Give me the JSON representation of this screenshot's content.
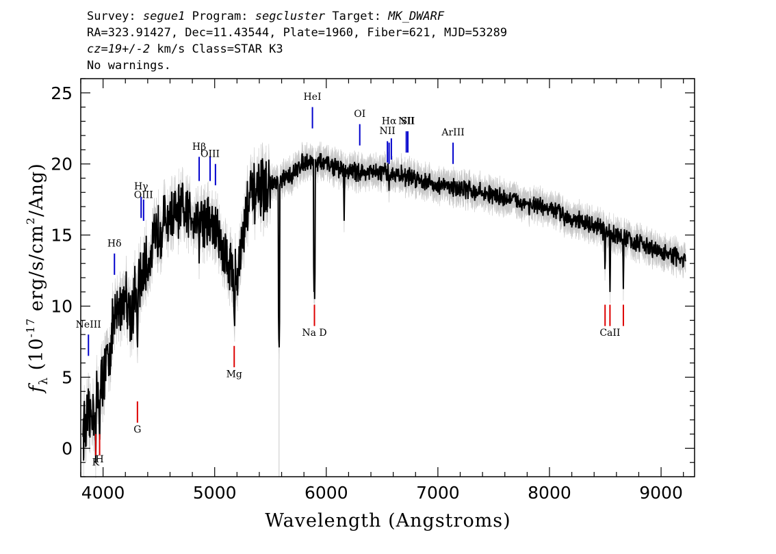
{
  "header": {
    "survey_label": "Survey:",
    "survey": "segue1",
    "program_label": "Program:",
    "program": "segcluster",
    "target_label": "Target:",
    "target": "MK_DWARF",
    "coords_line": "RA=323.91427, Dec=11.43544, Plate=1960, Fiber=621, MJD=53289",
    "cz_value": "cz=19+/-2",
    "cz_rest": " km/s Class=STAR K3",
    "warnings": "No warnings."
  },
  "chart_data": {
    "type": "line",
    "xlabel": "Wavelength (Angstroms)",
    "ylabel_parts": {
      "f": "f",
      "lambda": "λ",
      "open": " (10",
      "exp1": "-17",
      "mid": " erg/s/cm",
      "exp2": "2",
      "close": "/Ang)"
    },
    "xlim": [
      3800,
      9300
    ],
    "ylim": [
      -2,
      26
    ],
    "x_ticks": [
      4000,
      5000,
      6000,
      7000,
      8000,
      9000
    ],
    "x_tick_labels": [
      "4000",
      "5000",
      "6000",
      "7000",
      "8000",
      "9000"
    ],
    "y_ticks": [
      0,
      5,
      10,
      15,
      20,
      25
    ],
    "y_tick_labels": [
      "0",
      "5",
      "10",
      "15",
      "20",
      "25"
    ],
    "x_minor_step": 200,
    "y_minor_step": 1,
    "colors": {
      "spectrum": "#000000",
      "error": "#c8c8c8",
      "emission": "#0000cc",
      "absorption": "#dd0000"
    },
    "continuum": [
      [
        3820,
        1.5
      ],
      [
        3850,
        1.5
      ],
      [
        3900,
        2.5
      ],
      [
        3950,
        3.5
      ],
      [
        4000,
        5.0
      ],
      [
        4050,
        6.5
      ],
      [
        4100,
        9.0
      ],
      [
        4150,
        10.0
      ],
      [
        4200,
        11.0
      ],
      [
        4250,
        9.5
      ],
      [
        4300,
        11.0
      ],
      [
        4350,
        12.0
      ],
      [
        4400,
        13.0
      ],
      [
        4500,
        15.5
      ],
      [
        4600,
        16.3
      ],
      [
        4700,
        16.5
      ],
      [
        4800,
        16.5
      ],
      [
        4900,
        16.2
      ],
      [
        5000,
        15.5
      ],
      [
        5100,
        13.5
      ],
      [
        5200,
        12.0
      ],
      [
        5300,
        17.5
      ],
      [
        5400,
        18.0
      ],
      [
        5500,
        18.5
      ],
      [
        5600,
        18.8
      ],
      [
        5700,
        19.3
      ],
      [
        5800,
        20.2
      ],
      [
        5900,
        20.2
      ],
      [
        6000,
        20.0
      ],
      [
        6200,
        19.5
      ],
      [
        6400,
        19.4
      ],
      [
        6600,
        19.3
      ],
      [
        6800,
        19.0
      ],
      [
        7000,
        18.5
      ],
      [
        7200,
        18.3
      ],
      [
        7500,
        17.8
      ],
      [
        7800,
        17.2
      ],
      [
        8000,
        16.8
      ],
      [
        8200,
        16.2
      ],
      [
        8400,
        15.6
      ],
      [
        8600,
        15.0
      ],
      [
        8800,
        14.4
      ],
      [
        9000,
        13.8
      ],
      [
        9220,
        13.2
      ]
    ],
    "absorption_dips": [
      [
        3934,
        -1.0
      ],
      [
        3969,
        0.0
      ],
      [
        4102,
        8.0
      ],
      [
        4308,
        6.5
      ],
      [
        4861,
        13.0
      ],
      [
        5175,
        8.5
      ],
      [
        5178,
        8.0
      ],
      [
        5577,
        6.5
      ],
      [
        5890,
        11.0
      ],
      [
        5896,
        10.5
      ],
      [
        6160,
        16.0
      ],
      [
        6563,
        17.5
      ],
      [
        8498,
        12.0
      ],
      [
        8542,
        11.0
      ],
      [
        8662,
        11.2
      ]
    ],
    "emission_lines": [
      {
        "label": "NeIII",
        "wavelength": 3869,
        "y0": 6.5,
        "y1": 8.0,
        "label_y": 8.5
      },
      {
        "label": "Hδ",
        "wavelength": 4102,
        "y0": 12.2,
        "y1": 13.7,
        "label_y": 14.2
      },
      {
        "label": "Hγ",
        "wavelength": 4341,
        "y0": 16.2,
        "y1": 17.7,
        "label_y": 18.2
      },
      {
        "label": "OIII",
        "wavelength": 4363,
        "y0": 16.0,
        "y1": 17.5,
        "label_y": 17.6
      },
      {
        "label": "Hβ",
        "wavelength": 4861,
        "y0": 18.8,
        "y1": 20.5,
        "label_y": 21.0
      },
      {
        "label": "OIII",
        "wavelength": 4959,
        "y0": 18.8,
        "y1": 20.5,
        "label_y": 20.5
      },
      {
        "label": "OIII",
        "wavelength": 5007,
        "y0": 18.5,
        "y1": 20.0
      },
      {
        "label": "HeI",
        "wavelength": 5876,
        "y0": 22.5,
        "y1": 24.0,
        "label_y": 24.5
      },
      {
        "label": "OI",
        "wavelength": 6300,
        "y0": 21.3,
        "y1": 22.8,
        "label_y": 23.3
      },
      {
        "label": "NII",
        "wavelength": 6548,
        "y0": 20.1,
        "y1": 21.6,
        "label_y": 22.1
      },
      {
        "label": "Hα",
        "wavelength": 6563,
        "y0": 20.0,
        "y1": 21.5,
        "label_y": 22.8
      },
      {
        "label": "NII",
        "wavelength": 6583,
        "y0": 20.3,
        "y1": 21.8
      },
      {
        "label": "NII",
        "wavelength": 6717,
        "y0": 20.8,
        "y1": 22.3,
        "label_y": 22.8
      },
      {
        "label": "SII",
        "wavelength": 6731,
        "y0": 20.8,
        "y1": 22.3,
        "label_y": 22.8
      },
      {
        "label": "ArIII",
        "wavelength": 7136,
        "y0": 20.0,
        "y1": 21.5,
        "label_y": 22.0
      }
    ],
    "absorption_lines": [
      {
        "label": "K",
        "wavelength": 3934,
        "y0": -0.5,
        "y1": 1.0,
        "label_y": -1.2
      },
      {
        "label": "H",
        "wavelength": 3969,
        "y0": -0.5,
        "y1": 1.0,
        "label_y": -1.0
      },
      {
        "label": "G",
        "wavelength": 4308,
        "y0": 1.8,
        "y1": 3.3,
        "label_y": 1.1
      },
      {
        "label": "Mg",
        "wavelength": 5175,
        "y0": 5.7,
        "y1": 7.2,
        "label_y": 5.0
      },
      {
        "label": "Na",
        "wavelength": 5894,
        "y0": 8.6,
        "y1": 10.1,
        "label_y": 7.9
      },
      {
        "label": "CaII",
        "wavelength": 8498,
        "y0": 8.6,
        "y1": 10.1
      },
      {
        "label": "CaII",
        "wavelength": 8542,
        "y0": 8.6,
        "y1": 10.1,
        "label_y": 7.9
      },
      {
        "label": "CaII",
        "wavelength": 8662,
        "y0": 8.6,
        "y1": 10.1
      }
    ],
    "na_d_label": "Na D"
  }
}
